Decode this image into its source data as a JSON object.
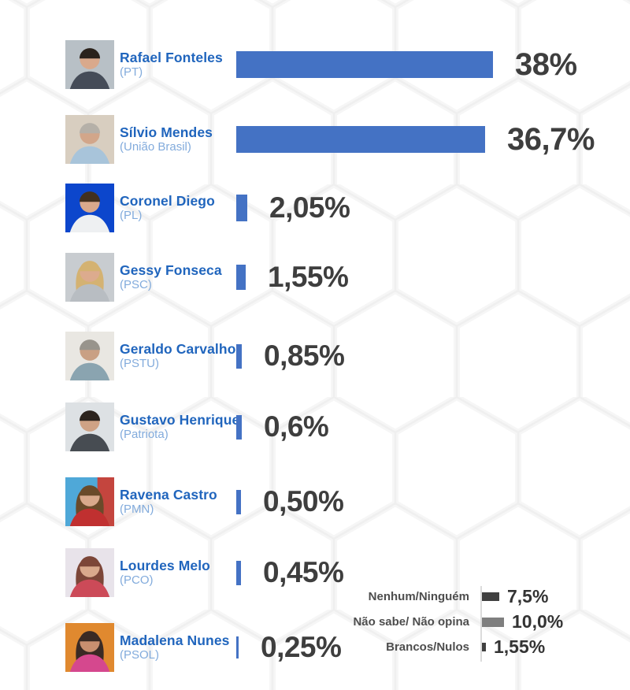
{
  "chart_data": {
    "type": "bar",
    "orientation": "horizontal",
    "title": "",
    "unit": "%",
    "bar_color": "#4472c4",
    "value_text_color": "#3e3e3e",
    "name_color": "#2065bd",
    "party_color": "#82abdc",
    "candidates": [
      {
        "name": "Rafael Fonteles",
        "party": "(PT)",
        "value": 38,
        "label": "38%",
        "photo": {
          "bg": "#b8c0c6",
          "hair": "#2a221c",
          "hair_style": "short",
          "skin": "#d9a98c",
          "shirt": "#454c58"
        }
      },
      {
        "name": "Sílvio Mendes",
        "party": "(União Brasil)",
        "value": 36.7,
        "label": "36,7%",
        "photo": {
          "bg": "#d8cec0",
          "hair": "#b5b0a8",
          "hair_style": "short",
          "skin": "#d2a68a",
          "shirt": "#a8c4da"
        }
      },
      {
        "name": "Coronel Diego",
        "party": "(PL)",
        "value": 2.05,
        "label": "2,05%",
        "photo": {
          "bg": "#0c46cc",
          "hair": "#42301f",
          "hair_style": "short",
          "skin": "#d9a98c",
          "shirt": "#eef0f2"
        }
      },
      {
        "name": "Gessy Fonseca",
        "party": "(PSC)",
        "value": 1.55,
        "label": "1,55%",
        "photo": {
          "bg": "#c8ccd0",
          "hair": "#d4b272",
          "hair_style": "long",
          "skin": "#dcab8e",
          "shirt": "#b8bdc2"
        }
      },
      {
        "name": "Geraldo Carvalho",
        "party": "(PSTU)",
        "value": 0.85,
        "label": "0,85%",
        "photo": {
          "bg": "#e9e7e2",
          "hair": "#98948c",
          "hair_style": "short",
          "skin": "#c9a084",
          "shirt": "#8aa4b0"
        }
      },
      {
        "name": "Gustavo Henrique",
        "party": "(Patriota)",
        "value": 0.6,
        "label": "0,6%",
        "photo": {
          "bg": "#dde1e4",
          "hair": "#2c241e",
          "hair_style": "short",
          "skin": "#cfa285",
          "shirt": "#474c52"
        }
      },
      {
        "name": "Ravena Castro",
        "party": "(PMN)",
        "value": 0.5,
        "label": "0,50%",
        "photo": {
          "bg": "#4fa8d8",
          "bg2": "#c4453e",
          "hair": "#6a4a2a",
          "hair_style": "long",
          "skin": "#d9a98c",
          "shirt": "#c03030"
        }
      },
      {
        "name": "Lourdes Melo",
        "party": "(PCO)",
        "value": 0.45,
        "label": "0,45%",
        "photo": {
          "bg": "#e8e3ea",
          "hair": "#7c4638",
          "hair_style": "long",
          "skin": "#d9a98c",
          "shirt": "#cc4a58"
        }
      },
      {
        "name": "Madalena Nunes",
        "party": "(PSOL)",
        "value": 0.25,
        "label": "0,25%",
        "photo": {
          "bg": "#e0892f",
          "hair": "#3a2a24",
          "hair_style": "long",
          "skin": "#c98f6f",
          "shirt": "#d5488e"
        }
      }
    ],
    "others": [
      {
        "label": "Nenhum/Ninguém",
        "value": 7.5,
        "value_label": "7,5%",
        "bar_color": "#404040"
      },
      {
        "label": "Não sabe/ Não opina",
        "value": 10.0,
        "value_label": "10,0%",
        "bar_color": "#7f7f7f"
      },
      {
        "label": "Brancos/Nulos",
        "value": 1.55,
        "value_label": "1,55%",
        "bar_color": "#404040"
      }
    ],
    "layout_hints": {
      "legend_position": "bottom-right",
      "grid": false,
      "background_pattern": "light-gray-hexagons",
      "divider_color": "#dcdcdc"
    }
  }
}
